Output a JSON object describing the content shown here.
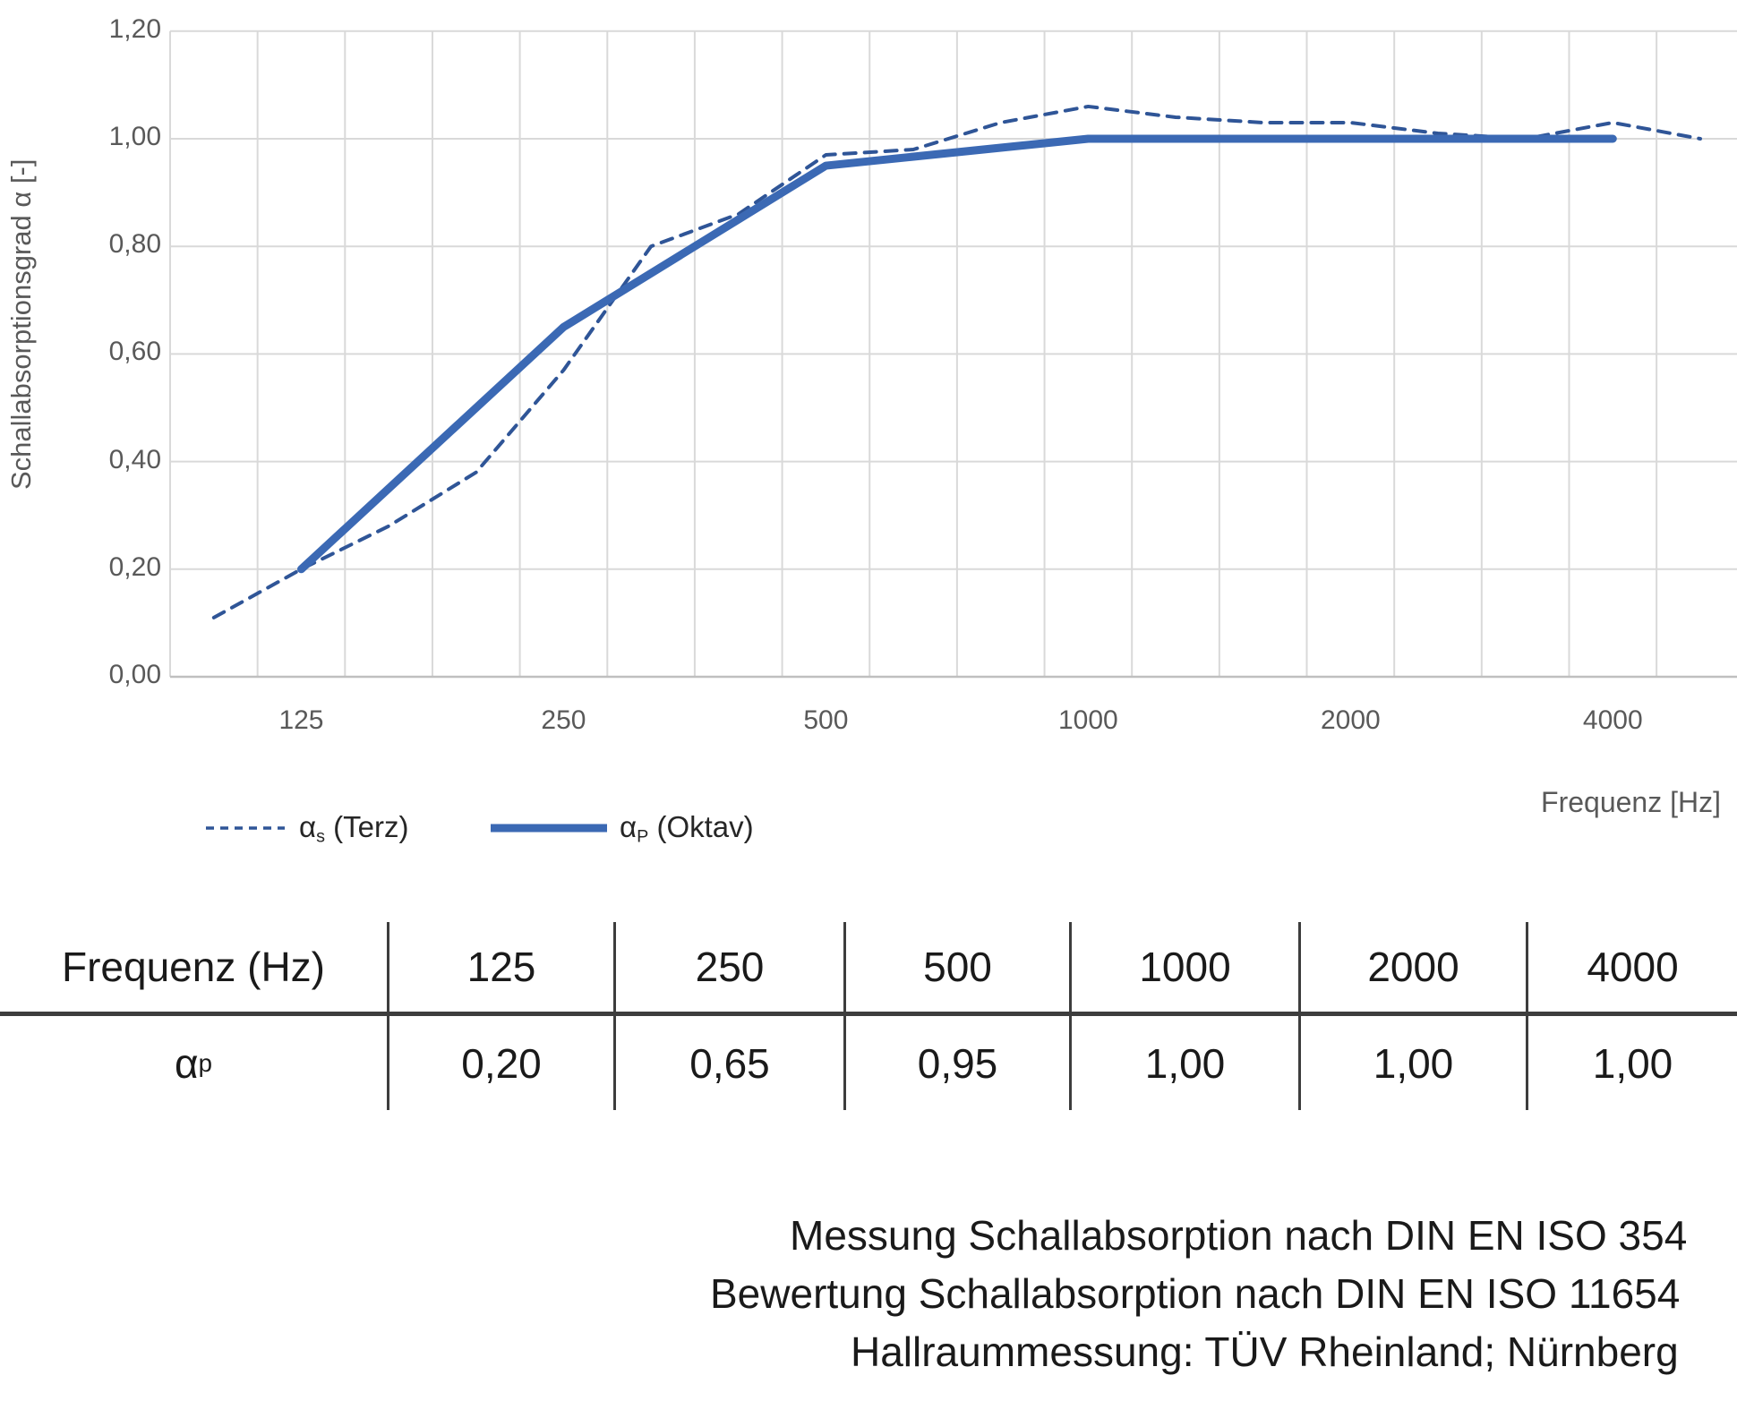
{
  "chart": {
    "y_axis_title": "Schallabsorptionsgrad α [-]",
    "x_axis_title": "Frequenz [Hz]",
    "y_ticks": [
      {
        "value": 1.2,
        "label": "1,20"
      },
      {
        "value": 1.0,
        "label": "1,00"
      },
      {
        "value": 0.8,
        "label": "0,80"
      },
      {
        "value": 0.6,
        "label": "0,60"
      },
      {
        "value": 0.4,
        "label": "0,40"
      },
      {
        "value": 0.2,
        "label": "0,20"
      },
      {
        "value": 0.0,
        "label": "0,00"
      }
    ],
    "x_ticks": [
      {
        "freq": 125,
        "label": "125"
      },
      {
        "freq": 250,
        "label": "250"
      },
      {
        "freq": 500,
        "label": "500"
      },
      {
        "freq": 1000,
        "label": "1000"
      },
      {
        "freq": 2000,
        "label": "2000"
      },
      {
        "freq": 4000,
        "label": "4000"
      }
    ],
    "legend": [
      {
        "alpha": "α",
        "sub": "s",
        "rest": " (Terz)",
        "style": "dashed"
      },
      {
        "alpha": "α",
        "sub": "P",
        "rest": " (Oktav)",
        "style": "solid"
      }
    ],
    "colors": {
      "solid_series": "#3b69b4",
      "dashed_series": "#2f5597",
      "grid": "#d9d9d9",
      "axis_line": "#bfbfbf",
      "tick_text": "#595959"
    }
  },
  "chart_data": {
    "type": "line",
    "title": "",
    "xlabel": "Frequenz [Hz]",
    "ylabel": "Schallabsorptionsgrad α [-]",
    "ylim": [
      0,
      1.2
    ],
    "x_scale": "third-octave categories (log)",
    "grid": true,
    "legend_position": "bottom-left",
    "x": [
      100,
      125,
      160,
      200,
      250,
      315,
      400,
      500,
      630,
      800,
      1000,
      1250,
      1600,
      2000,
      2500,
      3150,
      4000,
      5000
    ],
    "series": [
      {
        "name": "αs (Terz)",
        "style": "dashed",
        "x": [
          100,
          125,
          160,
          200,
          250,
          315,
          400,
          500,
          630,
          800,
          1000,
          1250,
          1600,
          2000,
          2500,
          3150,
          4000,
          5000
        ],
        "y": [
          0.11,
          0.2,
          0.28,
          0.38,
          0.57,
          0.8,
          0.86,
          0.97,
          0.98,
          1.03,
          1.06,
          1.04,
          1.03,
          1.03,
          1.01,
          1.0,
          1.03,
          1.0
        ]
      },
      {
        "name": "αP (Oktav)",
        "style": "solid",
        "x": [
          125,
          250,
          500,
          1000,
          2000,
          4000
        ],
        "y": [
          0.2,
          0.65,
          0.95,
          1.0,
          1.0,
          1.0
        ]
      }
    ]
  },
  "table": {
    "header": [
      "Frequenz (Hz)",
      "125",
      "250",
      "500",
      "1000",
      "2000",
      "4000"
    ],
    "row_label": {
      "alpha": "α",
      "sub": "p"
    },
    "values": [
      "0,20",
      "0,65",
      "0,95",
      "1,00",
      "1,00",
      "1,00"
    ]
  },
  "footer": {
    "lines": [
      "Messung Schallabsorption nach DIN EN ISO 354",
      "Bewertung Schallabsorption nach DIN EN ISO 11654",
      "Hallraummessung: TÜV Rheinland; Nürnberg"
    ]
  }
}
